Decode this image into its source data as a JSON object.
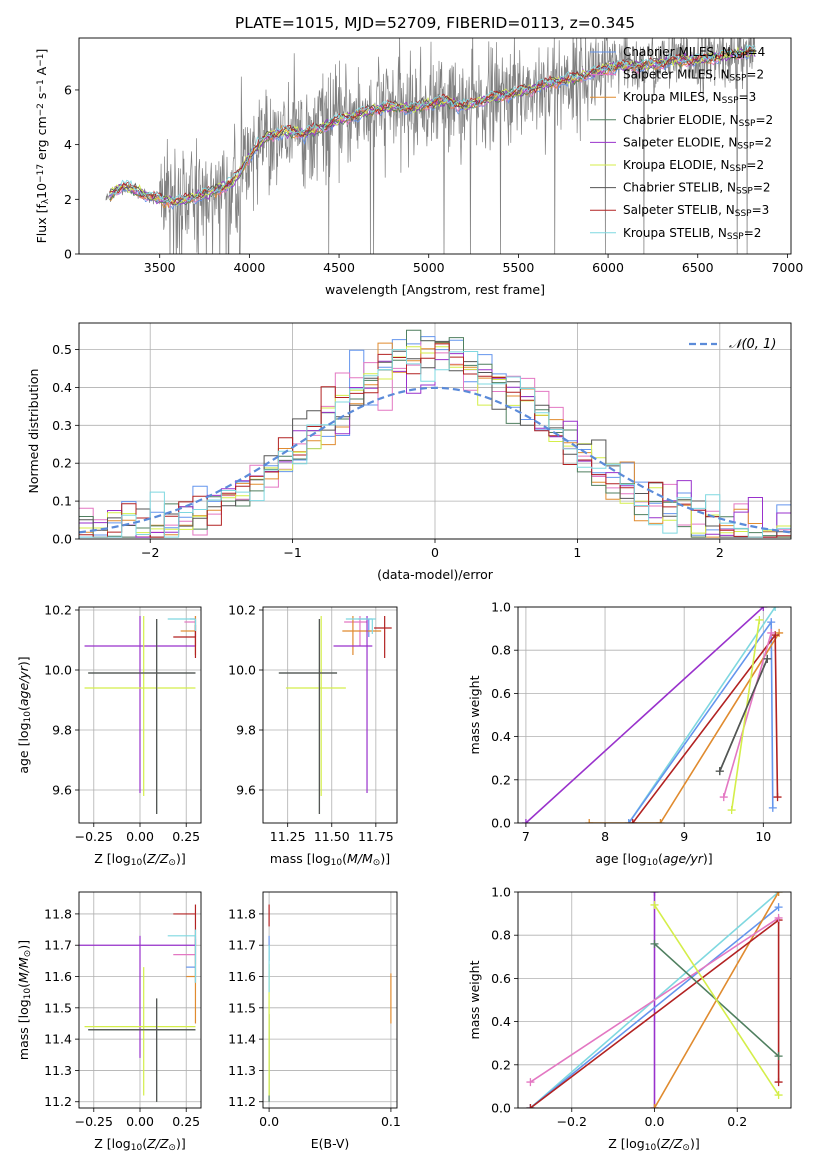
{
  "title": "PLATE=1015, MJD=52709, FIBERID=0113, z=0.345",
  "models": [
    {
      "name": "Chabrier MILES",
      "nssp": "4",
      "color": "#6495ED"
    },
    {
      "name": "Salpeter MILES",
      "nssp": "2",
      "color": "#E377C2"
    },
    {
      "name": "Kroupa MILES",
      "nssp": "3",
      "color": "#E08B2F"
    },
    {
      "name": "Chabrier ELODIE",
      "nssp": "2",
      "color": "#4F7F5F"
    },
    {
      "name": "Salpeter ELODIE",
      "nssp": "2",
      "color": "#9932CC"
    },
    {
      "name": "Kroupa ELODIE",
      "nssp": "2",
      "color": "#D4EE4A"
    },
    {
      "name": "Chabrier STELIB",
      "nssp": "2",
      "color": "#555555"
    },
    {
      "name": "Salpeter STELIB",
      "nssp": "3",
      "color": "#B22222"
    },
    {
      "name": "Kroupa STELIB",
      "nssp": "2",
      "color": "#7FD8E0"
    }
  ],
  "chart_data": [
    {
      "type": "line",
      "id": "spectrum",
      "xlabel": "wavelength [Angstrom, rest frame]",
      "ylabel_main": "Flux [f",
      "ylabel_sub": "λ",
      "ylabel_rest": "10",
      "ylabel_sup": "−17",
      "ylabel_units": " erg cm",
      "ylabel_sup2": "−2",
      "ylabel_s": " s",
      "ylabel_sup3": "−1",
      "ylabel_end": " A",
      "ylabel_sup4": "−1",
      "ylabel_close": "]",
      "xlim": [
        3050,
        7020
      ],
      "ylim": [
        0,
        7.9
      ],
      "xticks": [
        3500,
        4000,
        4500,
        5000,
        5500,
        6000,
        6500,
        7000
      ],
      "yticks": [
        0,
        2,
        4,
        6
      ],
      "data_color": "#808080",
      "continuum": [
        [
          3200,
          2.0
        ],
        [
          3250,
          2.3
        ],
        [
          3300,
          2.5
        ],
        [
          3400,
          2.2
        ],
        [
          3500,
          2.0
        ],
        [
          3600,
          1.9
        ],
        [
          3700,
          2.1
        ],
        [
          3800,
          2.3
        ],
        [
          3900,
          2.6
        ],
        [
          3950,
          3.0
        ],
        [
          4000,
          3.6
        ],
        [
          4100,
          4.3
        ],
        [
          4200,
          4.5
        ],
        [
          4300,
          4.4
        ],
        [
          4400,
          4.6
        ],
        [
          4500,
          4.9
        ],
        [
          4600,
          5.1
        ],
        [
          4700,
          5.3
        ],
        [
          4800,
          5.4
        ],
        [
          4900,
          5.3
        ],
        [
          5000,
          5.5
        ],
        [
          5100,
          5.6
        ],
        [
          5200,
          5.4
        ],
        [
          5300,
          5.6
        ],
        [
          5400,
          5.8
        ],
        [
          5500,
          5.9
        ],
        [
          5600,
          6.1
        ],
        [
          5700,
          6.3
        ],
        [
          5800,
          6.4
        ],
        [
          5900,
          6.6
        ],
        [
          6000,
          6.8
        ],
        [
          6100,
          6.9
        ],
        [
          6200,
          6.9
        ],
        [
          6300,
          7.0
        ],
        [
          6400,
          7.1
        ],
        [
          6500,
          7.1
        ],
        [
          6600,
          7.2
        ],
        [
          6700,
          7.3
        ],
        [
          6800,
          7.4
        ]
      ]
    },
    {
      "type": "line",
      "id": "residuals",
      "xlabel": "(data-model)/error",
      "ylabel": "Normed distribution",
      "xlim": [
        -2.5,
        2.5
      ],
      "ylim": [
        0,
        0.57
      ],
      "xticks": [
        -2,
        -1,
        0,
        1,
        2
      ],
      "yticks": [
        0.0,
        0.1,
        0.2,
        0.3,
        0.4,
        0.5
      ],
      "gaussian_label": "𝒩(0, 1)",
      "gaussian_color": "#5B8BD9"
    },
    {
      "type": "scatter",
      "id": "age-Z",
      "xlabel": "Z [log",
      "xlabel_sub": "10",
      "xlabel_rest": "(Z/Z",
      "xlabel_sub2": "⊙",
      "xlabel_end": ")]",
      "ylabel": "age  [log10(age/yr)]",
      "xlim": [
        -0.33,
        0.33
      ],
      "ylim": [
        9.49,
        10.21
      ],
      "xticks": [
        -0.25,
        0.0,
        0.25
      ],
      "yticks": [
        9.6,
        9.8,
        10.0,
        10.2
      ]
    },
    {
      "type": "scatter",
      "id": "age-mass",
      "xlabel": "mass [log10(M/M⊙)]",
      "xlim": [
        11.11,
        11.87
      ],
      "ylim": [
        9.49,
        10.21
      ],
      "xticks": [
        11.25,
        11.5,
        11.75
      ],
      "yticks": [
        9.6,
        9.8,
        10.0,
        10.2
      ]
    },
    {
      "type": "line",
      "id": "massweight-age",
      "xlabel": "age  [log10(age/yr)]",
      "ylabel": "mass weight",
      "xlim": [
        6.9,
        10.35
      ],
      "ylim": [
        0,
        1.0
      ],
      "xticks": [
        7,
        8,
        9,
        10
      ],
      "yticks": [
        0.0,
        0.2,
        0.4,
        0.6,
        0.8,
        1.0
      ]
    },
    {
      "type": "scatter",
      "id": "mass-Z",
      "xlabel": "Z [log10(Z/Z⊙)]",
      "ylabel": "mass [log10(M/M⊙)]",
      "xlim": [
        -0.33,
        0.33
      ],
      "ylim": [
        11.18,
        11.87
      ],
      "xticks": [
        -0.25,
        0.0,
        0.25
      ],
      "yticks": [
        11.2,
        11.3,
        11.4,
        11.5,
        11.6,
        11.7,
        11.8
      ]
    },
    {
      "type": "scatter",
      "id": "mass-ebv",
      "xlabel": "E(B-V)",
      "xlim": [
        -0.005,
        0.105
      ],
      "ylim": [
        11.18,
        11.87
      ],
      "xticks": [
        0.0,
        0.1
      ],
      "yticks": [
        11.2,
        11.3,
        11.4,
        11.5,
        11.6,
        11.7,
        11.8
      ]
    },
    {
      "type": "line",
      "id": "massweight-Z",
      "xlabel": "Z [log10(Z/Z⊙)]",
      "ylabel": "mass weight",
      "xlim": [
        -0.33,
        0.33
      ],
      "ylim": [
        0,
        1.0
      ],
      "xticks": [
        -0.2,
        0.0,
        0.2
      ],
      "yticks": [
        0.0,
        0.2,
        0.4,
        0.6,
        0.8,
        1.0
      ]
    }
  ],
  "age_Z_points": [
    {
      "model": 0,
      "x": 0.3,
      "y": 10.17,
      "xerr": [
        0.03,
        0.0
      ],
      "yerr": [
        0.06,
        0.0
      ]
    },
    {
      "model": 1,
      "x": 0.3,
      "y": 10.16,
      "xerr": [
        0.06,
        0.0
      ],
      "yerr": [
        0.08,
        0.02
      ]
    },
    {
      "model": 2,
      "x": 0.3,
      "y": 10.13,
      "xerr": [
        0.08,
        0.0
      ],
      "yerr": [
        0.08,
        0.05
      ]
    },
    {
      "model": 3,
      "x": 0.09,
      "y": 9.99,
      "xerr": [
        0.37,
        0.21
      ],
      "yerr": [
        0.47,
        0.18
      ]
    },
    {
      "model": 4,
      "x": 0.0,
      "y": 10.08,
      "xerr": [
        0.3,
        0.3
      ],
      "yerr": [
        0.49,
        0.1
      ]
    },
    {
      "model": 5,
      "x": 0.02,
      "y": 9.94,
      "xerr": [
        0.32,
        0.28
      ],
      "yerr": [
        0.36,
        0.24
      ]
    },
    {
      "model": 6,
      "x": 0.09,
      "y": 9.99,
      "xerr": [
        0.37,
        0.21
      ],
      "yerr": [
        0.47,
        0.18
      ]
    },
    {
      "model": 7,
      "x": 0.3,
      "y": 10.11,
      "xerr": [
        0.12,
        0.0
      ],
      "yerr": [
        0.07,
        0.04
      ]
    },
    {
      "model": 8,
      "x": 0.3,
      "y": 10.17,
      "xerr": [
        0.15,
        0.0
      ],
      "yerr": [
        0.04,
        0.0
      ]
    }
  ],
  "age_mass_points": [
    {
      "model": 0,
      "x": 11.71,
      "y": 10.17,
      "xerr": [
        0.06,
        0.02
      ],
      "yerr": [
        0.06,
        0.0
      ]
    },
    {
      "model": 1,
      "x": 11.66,
      "y": 10.16,
      "xerr": [
        0.09,
        0.04
      ],
      "yerr": [
        0.08,
        0.02
      ]
    },
    {
      "model": 2,
      "x": 11.62,
      "y": 10.13,
      "xerr": [
        0.06,
        0.16
      ],
      "yerr": [
        0.08,
        0.05
      ]
    },
    {
      "model": 3,
      "x": 11.43,
      "y": 9.99,
      "xerr": [
        0.23,
        0.1
      ],
      "yerr": [
        0.47,
        0.18
      ]
    },
    {
      "model": 4,
      "x": 11.7,
      "y": 10.08,
      "xerr": [
        0.19,
        0.03
      ],
      "yerr": [
        0.49,
        0.1
      ]
    },
    {
      "model": 5,
      "x": 11.44,
      "y": 9.94,
      "xerr": [
        0.2,
        0.14
      ],
      "yerr": [
        0.36,
        0.24
      ]
    },
    {
      "model": 6,
      "x": 11.43,
      "y": 9.99,
      "xerr": [
        0.23,
        0.1
      ],
      "yerr": [
        0.47,
        0.18
      ]
    },
    {
      "model": 7,
      "x": 11.8,
      "y": 10.14,
      "xerr": [
        0.06,
        0.04
      ],
      "yerr": [
        0.1,
        0.04
      ]
    },
    {
      "model": 8,
      "x": 11.73,
      "y": 10.17,
      "xerr": [
        0.15,
        0.02
      ],
      "yerr": [
        0.05,
        0.0
      ]
    }
  ],
  "mass_Z_points": [
    {
      "model": 0,
      "x": 0.3,
      "y": 11.63,
      "xerr": [
        0.05,
        0.0
      ],
      "yerr": [
        0.05,
        0.1
      ]
    },
    {
      "model": 1,
      "x": 0.3,
      "y": 11.67,
      "xerr": [
        0.12,
        0.0
      ],
      "yerr": [
        0.03,
        0.05
      ]
    },
    {
      "model": 2,
      "x": 0.3,
      "y": 11.6,
      "xerr": [
        0.05,
        0.0
      ],
      "yerr": [
        0.15,
        0.1
      ]
    },
    {
      "model": 3,
      "x": 0.09,
      "y": 11.43,
      "xerr": [
        0.37,
        0.21
      ],
      "yerr": [
        0.23,
        0.1
      ]
    },
    {
      "model": 4,
      "x": 0.0,
      "y": 11.7,
      "xerr": [
        0.33,
        0.3
      ],
      "yerr": [
        0.36,
        0.03
      ]
    },
    {
      "model": 5,
      "x": 0.02,
      "y": 11.44,
      "xerr": [
        0.32,
        0.28
      ],
      "yerr": [
        0.22,
        0.19
      ]
    },
    {
      "model": 6,
      "x": 0.09,
      "y": 11.43,
      "xerr": [
        0.37,
        0.21
      ],
      "yerr": [
        0.23,
        0.1
      ]
    },
    {
      "model": 7,
      "x": 0.3,
      "y": 11.8,
      "xerr": [
        0.12,
        0.0
      ],
      "yerr": [
        0.1,
        0.03
      ]
    },
    {
      "model": 8,
      "x": 0.3,
      "y": 11.73,
      "xerr": [
        0.15,
        0.0
      ],
      "yerr": [
        0.15,
        0.02
      ]
    }
  ],
  "mass_ebv_points": [
    {
      "model": 0,
      "x": 0.0,
      "y": 11.7,
      "yerr": [
        0.05,
        0.03
      ]
    },
    {
      "model": 2,
      "x": 0.1,
      "y": 11.55,
      "yerr": [
        0.1,
        0.06
      ]
    },
    {
      "model": 3,
      "x": 0.0,
      "y": 11.43,
      "yerr": [
        0.23,
        0.05
      ]
    },
    {
      "model": 5,
      "x": 0.0,
      "y": 11.44,
      "yerr": [
        0.22,
        0.2
      ]
    },
    {
      "model": 7,
      "x": 0.0,
      "y": 11.8,
      "yerr": [
        0.04,
        0.03
      ]
    },
    {
      "model": 8,
      "x": 0.0,
      "y": 11.65,
      "yerr": [
        0.1,
        0.05
      ]
    }
  ],
  "mw_age_lines": [
    {
      "model": 4,
      "pts": [
        [
          7.0,
          0.0
        ],
        [
          10.0,
          1.0
        ]
      ]
    },
    {
      "model": 8,
      "pts": [
        [
          8.3,
          0.0
        ],
        [
          10.15,
          1.0
        ]
      ]
    },
    {
      "model": 0,
      "pts": [
        [
          8.3,
          0.0
        ],
        [
          10.1,
          0.93
        ],
        [
          10.12,
          0.07
        ]
      ]
    },
    {
      "model": 2,
      "pts": [
        [
          7.8,
          0.0
        ],
        [
          8.7,
          0.0
        ],
        [
          10.2,
          0.88
        ]
      ]
    },
    {
      "model": 7,
      "pts": [
        [
          8.35,
          0.0
        ],
        [
          10.15,
          0.87
        ],
        [
          10.18,
          0.12
        ]
      ]
    },
    {
      "model": 3,
      "pts": [
        [
          9.45,
          0.24
        ],
        [
          10.05,
          0.76
        ]
      ]
    },
    {
      "model": 1,
      "pts": [
        [
          9.5,
          0.12
        ],
        [
          10.1,
          0.88
        ]
      ]
    },
    {
      "model": 5,
      "pts": [
        [
          9.6,
          0.06
        ],
        [
          9.95,
          0.94
        ]
      ]
    },
    {
      "model": 6,
      "pts": [
        [
          9.45,
          0.24
        ],
        [
          10.05,
          0.76
        ]
      ]
    }
  ],
  "mw_Z_lines": [
    {
      "model": 4,
      "pts": [
        [
          0.0,
          0.0
        ],
        [
          0.0,
          1.0
        ]
      ]
    },
    {
      "model": 8,
      "pts": [
        [
          -0.3,
          0.0
        ],
        [
          0.3,
          1.0
        ]
      ]
    },
    {
      "model": 0,
      "pts": [
        [
          -0.3,
          0.0
        ],
        [
          0.3,
          0.93
        ]
      ]
    },
    {
      "model": 2,
      "pts": [
        [
          0.0,
          0.0
        ],
        [
          0.3,
          1.0
        ]
      ]
    },
    {
      "model": 7,
      "pts": [
        [
          -0.3,
          0.0
        ],
        [
          0.3,
          0.87
        ],
        [
          0.3,
          0.12
        ]
      ]
    },
    {
      "model": 1,
      "pts": [
        [
          -0.3,
          0.12
        ],
        [
          0.3,
          0.88
        ]
      ]
    },
    {
      "model": 3,
      "pts": [
        [
          0.0,
          0.76
        ],
        [
          0.3,
          0.24
        ]
      ]
    },
    {
      "model": 5,
      "pts": [
        [
          0.0,
          0.94
        ],
        [
          0.3,
          0.06
        ]
      ]
    }
  ]
}
